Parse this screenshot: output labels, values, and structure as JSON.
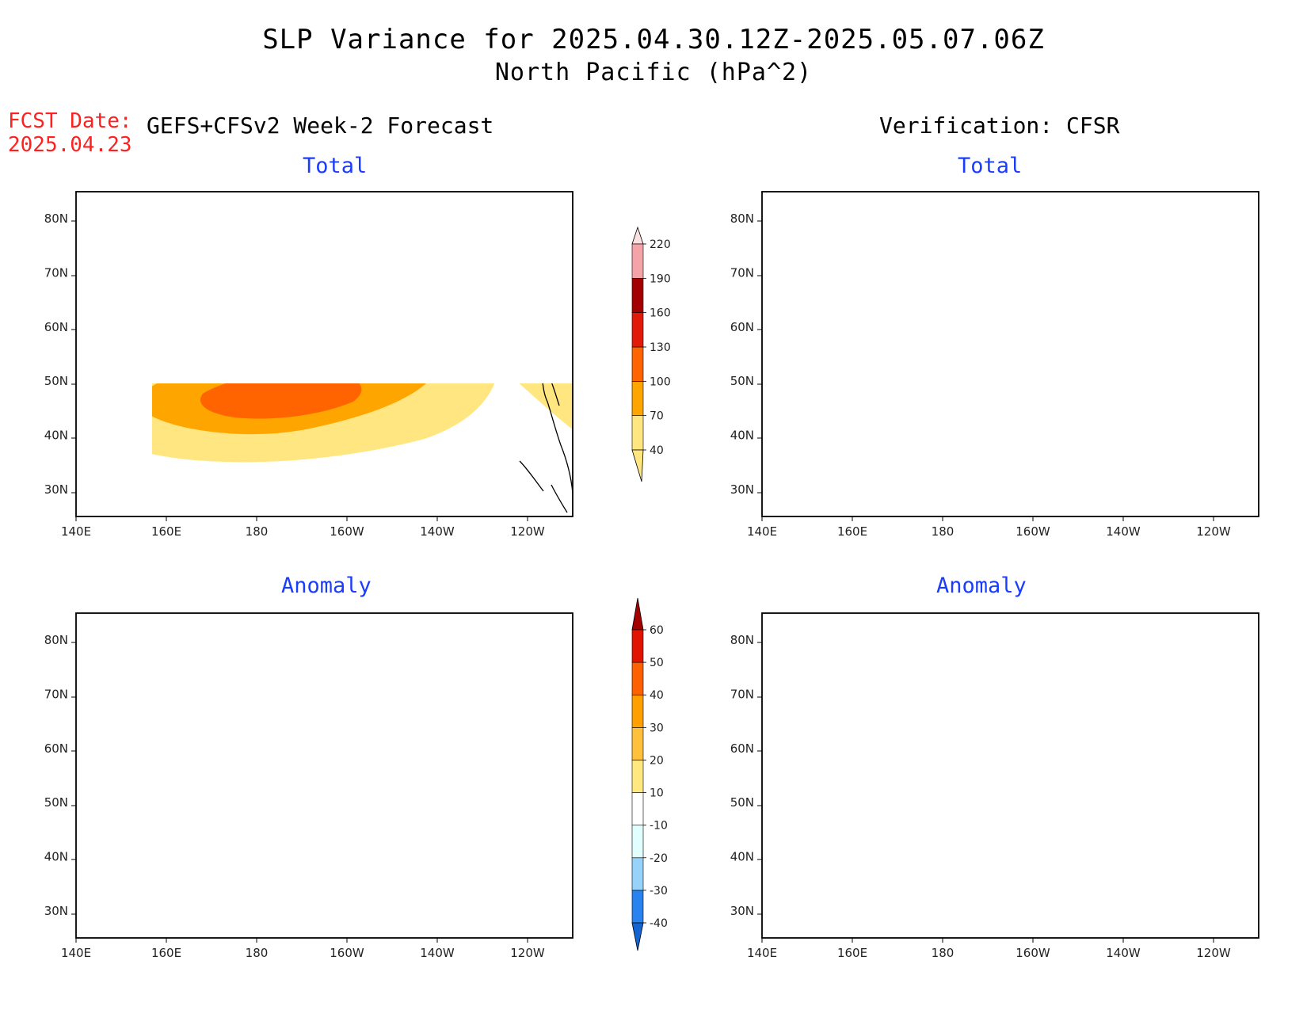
{
  "figure": {
    "title_line1": "SLP Variance for 2025.04.30.12Z-2025.05.07.06Z",
    "title_line2": "North Pacific (hPa^2)",
    "fcst_label": "FCST Date:",
    "fcst_date": "2025.04.23",
    "left_header": "GEFS+CFSv2 Week-2 Forecast",
    "right_header": "Verification: CFSR"
  },
  "panels": {
    "fc_total": {
      "subtitle": "Total"
    },
    "vf_total": {
      "subtitle": "Total"
    },
    "fc_anom": {
      "subtitle": "Anomaly"
    },
    "vf_anom": {
      "subtitle": "Anomaly"
    }
  },
  "axes": {
    "x_ticks": [
      "140E",
      "160E",
      "180",
      "160W",
      "140W",
      "120W"
    ],
    "y_ticks": [
      "30N",
      "40N",
      "50N",
      "60N",
      "70N",
      "80N"
    ],
    "lon_range": [
      140,
      250
    ],
    "lat_range": [
      25,
      85
    ]
  },
  "colorbars": {
    "total": {
      "labels": [
        "40",
        "70",
        "100",
        "130",
        "160",
        "190",
        "220"
      ],
      "colors": [
        "#ffe680",
        "#ffa500",
        "#ff6400",
        "#e11a0a",
        "#a50000",
        "#f4a3a8",
        "#fbe0e2"
      ]
    },
    "anomaly": {
      "labels": [
        "-40",
        "-30",
        "-20",
        "-10",
        "10",
        "20",
        "30",
        "40",
        "50",
        "60"
      ],
      "colors": [
        "#1464d2",
        "#2882f0",
        "#96d2fa",
        "#e1ffff",
        "#ffffff",
        "#ffe880",
        "#ffc03c",
        "#ffa000",
        "#ff6000",
        "#e11400",
        "#a50000"
      ]
    }
  },
  "colors": {
    "title_text": "#000000",
    "fcst_text": "#ff2020",
    "subtitle_text": "#1a3cff",
    "coast": "#000000"
  }
}
